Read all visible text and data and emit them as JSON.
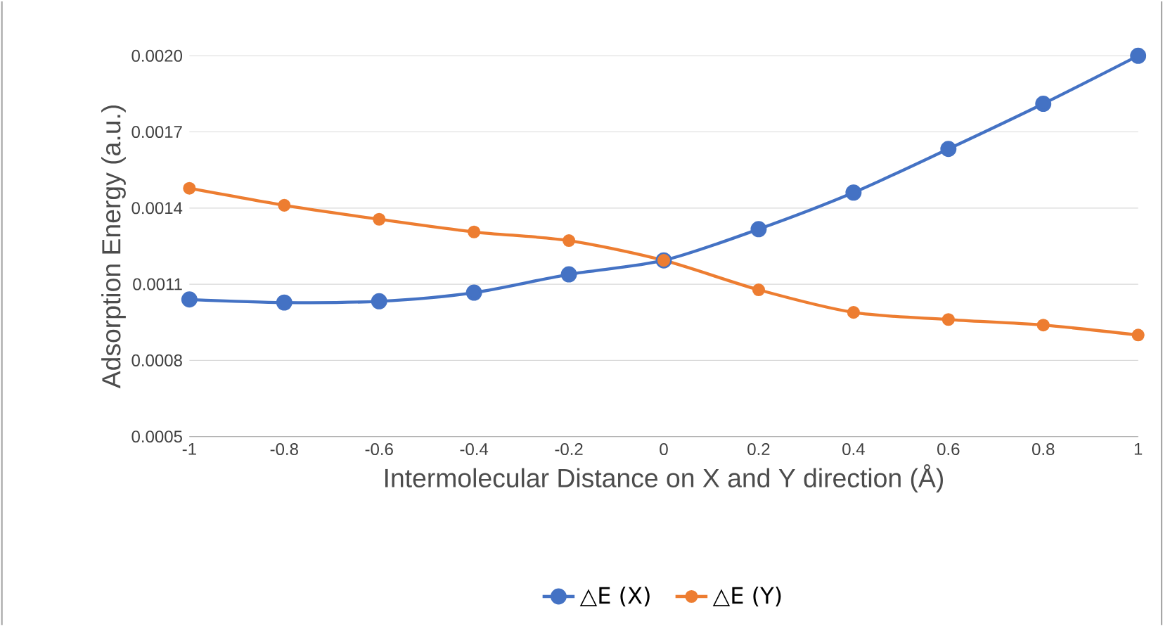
{
  "chart_data": {
    "type": "line",
    "xlabel": "Intermolecular Distance on X and Y direction (Å)",
    "ylabel": "Adsorption Energy (a.u.)",
    "x": [
      -1,
      -0.8,
      -0.6,
      -0.4,
      -0.2,
      0,
      0.2,
      0.4,
      0.6,
      0.8,
      1
    ],
    "series": [
      {
        "name": "△E (X)",
        "color": "#4472c4",
        "values": [
          0.00104,
          0.001028,
          0.001033,
          0.001067,
          0.001139,
          0.001194,
          0.001317,
          0.001461,
          0.001633,
          0.001811,
          0.002
        ]
      },
      {
        "name": "△E (Y)",
        "color": "#ed7d31",
        "values": [
          0.001478,
          0.001411,
          0.001356,
          0.001306,
          0.001272,
          0.001194,
          0.001078,
          0.000989,
          0.000961,
          0.000939,
          0.0009
        ]
      }
    ],
    "xlim": [
      -1,
      1
    ],
    "ylim": [
      0.0005,
      0.002
    ],
    "xticks": [
      -1,
      -0.8,
      -0.6,
      -0.4,
      -0.2,
      0,
      0.2,
      0.4,
      0.6,
      0.8,
      1
    ],
    "yticks": [
      0.0005,
      0.0008,
      0.0011,
      0.0014,
      0.0017,
      {
        "value": 0.002,
        "label": "0.0020"
      }
    ],
    "grid": "y",
    "legend": "bottom",
    "marker": "circle"
  }
}
